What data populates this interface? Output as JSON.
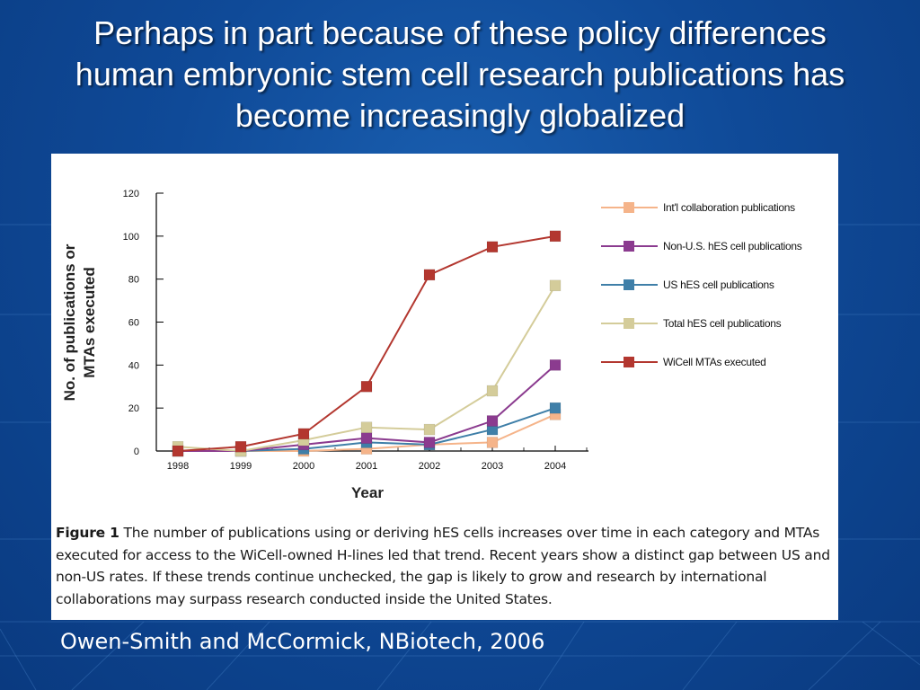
{
  "slide": {
    "title_lines": [
      "Perhaps in part because of these policy differences",
      "human embryonic stem cell research publications has",
      "become increasingly globalized"
    ],
    "citation": "Owen-Smith and McCormick, NBiotech, 2006"
  },
  "figure": {
    "caption_label": "Figure 1",
    "caption_text": "The number of publications using or deriving hES cells increases over time in each category and MTAs executed for access to the WiCell-owned H-lines led that trend. Recent years show a distinct gap between US and non-US rates. If these trends continue unchecked, the gap is likely to grow and research by international collaborations may surpass research conducted inside the United States."
  },
  "colors": {
    "background": "#0f4a98",
    "title": "#ffffff",
    "wicell": "#b3372f",
    "total": "#d4cc9a",
    "non_us": "#8b3b8f",
    "us": "#3f7fa8",
    "intl": "#f5b48a"
  },
  "chart_data": {
    "type": "line",
    "xlabel": "Year",
    "ylabel": "No. of publications or MTAs executed",
    "x": [
      "1998",
      "1999",
      "2000",
      "2001",
      "2002",
      "2003",
      "2004"
    ],
    "y_ticks": [
      0,
      20,
      40,
      60,
      80,
      100,
      120
    ],
    "ylim": [
      0,
      120
    ],
    "grid": false,
    "legend_position": "right",
    "series": [
      {
        "name": "Int'l collaboration publications",
        "key": "intl",
        "color": "#f5b48a",
        "values": [
          0,
          0,
          0,
          1,
          3,
          4,
          17
        ]
      },
      {
        "name": "Non-U.S. hES cell publications",
        "key": "non_us",
        "color": "#8b3b8f",
        "values": [
          0,
          0,
          3,
          6,
          4,
          14,
          40
        ]
      },
      {
        "name": "US hES cell publications",
        "key": "us",
        "color": "#3f7fa8",
        "values": [
          0,
          0,
          1,
          4,
          3,
          10,
          20
        ]
      },
      {
        "name": "Total hES cell publications",
        "key": "total",
        "color": "#d4cc9a",
        "values": [
          2,
          0,
          5,
          11,
          10,
          28,
          77
        ]
      },
      {
        "name": "WiCell MTAs executed",
        "key": "wicell",
        "color": "#b3372f",
        "values": [
          0,
          2,
          8,
          30,
          82,
          95,
          100
        ]
      }
    ]
  }
}
